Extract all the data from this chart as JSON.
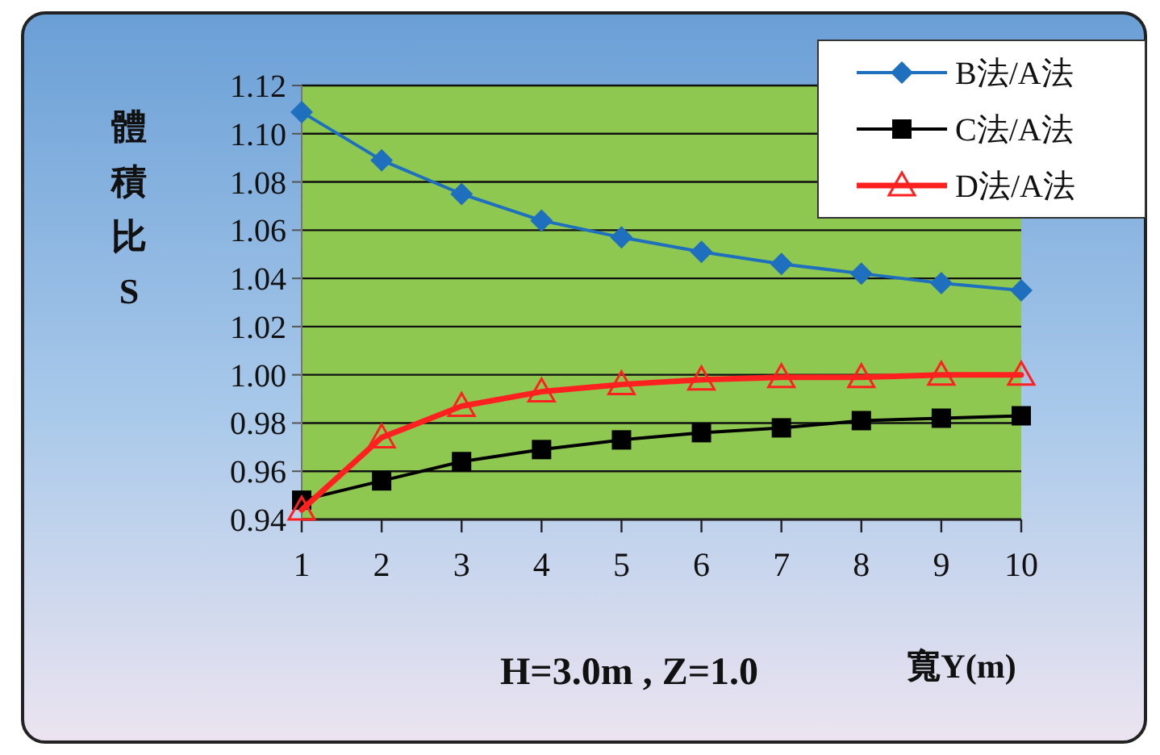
{
  "chart_data": {
    "type": "line",
    "xlabel": "寬Y(m)",
    "ylabel": "體積比S",
    "annotations": [
      "H=3.0m , Z=1.0"
    ],
    "x": [
      1,
      2,
      3,
      4,
      5,
      6,
      7,
      8,
      9,
      10
    ],
    "xlim": [
      1,
      10
    ],
    "xticks": [
      1,
      2,
      3,
      4,
      5,
      6,
      7,
      8,
      9,
      10
    ],
    "ylim": [
      0.94,
      1.12
    ],
    "yticks": [
      {
        "value": 0.94,
        "label": "0.94"
      },
      {
        "value": 0.96,
        "label": "0.96"
      },
      {
        "value": 0.98,
        "label": "0.98"
      },
      {
        "value": 1.0,
        "label": "1.00"
      },
      {
        "value": 1.02,
        "label": "1.02"
      },
      {
        "value": 1.04,
        "label": "1.04"
      },
      {
        "value": 1.06,
        "label": "1.06"
      },
      {
        "value": 1.08,
        "label": "1.08"
      },
      {
        "value": 1.1,
        "label": "1.10"
      },
      {
        "value": 1.12,
        "label": "1.12"
      }
    ],
    "grid": "y",
    "legend": "top right",
    "series": [
      {
        "name": "B法/A法",
        "color": "#1f6fbf",
        "marker": "diamond",
        "values": [
          1.109,
          1.089,
          1.075,
          1.064,
          1.057,
          1.051,
          1.046,
          1.042,
          1.038,
          1.035
        ]
      },
      {
        "name": "C法/A法",
        "color": "#000000",
        "marker": "square",
        "values": [
          0.948,
          0.956,
          0.964,
          0.969,
          0.973,
          0.976,
          0.978,
          0.981,
          0.982,
          0.983
        ]
      },
      {
        "name": "D法/A法",
        "color": "#ff2020",
        "marker": "triangle",
        "values": [
          0.944,
          0.974,
          0.987,
          0.993,
          0.996,
          0.998,
          0.999,
          0.999,
          1.0,
          1.0
        ]
      }
    ]
  }
}
